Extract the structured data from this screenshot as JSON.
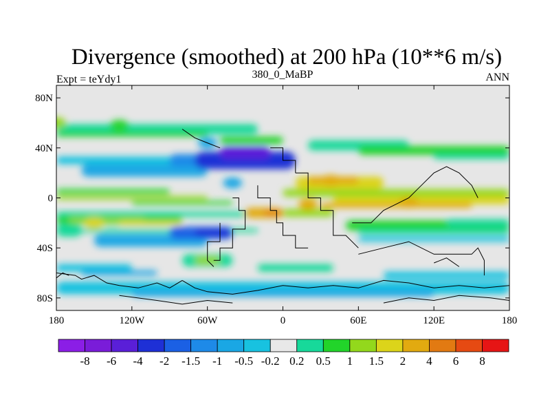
{
  "chart_data": {
    "type": "heatmap",
    "title": "Divergence (smoothed) at 200 hPa (10**6 m/s)",
    "left_label": "Expt = teYdy1",
    "center_label": "380_0_MaBP",
    "right_label": "ANN",
    "x_axis": {
      "range": [
        -180,
        180
      ],
      "ticks": [
        {
          "value": -180,
          "label": "180"
        },
        {
          "value": -120,
          "label": "120W"
        },
        {
          "value": -60,
          "label": "60W"
        },
        {
          "value": 0,
          "label": "0"
        },
        {
          "value": 60,
          "label": "60E"
        },
        {
          "value": 120,
          "label": "120E"
        },
        {
          "value": 180,
          "label": "180"
        }
      ]
    },
    "y_axis": {
      "range": [
        -90,
        90
      ],
      "ticks": [
        {
          "value": 80,
          "label": "80N"
        },
        {
          "value": 40,
          "label": "40N"
        },
        {
          "value": 0,
          "label": "0"
        },
        {
          "value": -40,
          "label": "40S"
        },
        {
          "value": -80,
          "label": "80S"
        }
      ]
    },
    "colorbar": {
      "colors": [
        "#8b1ee6",
        "#7a1cd9",
        "#5a1fd8",
        "#1e30d6",
        "#1b60e4",
        "#1e8ae8",
        "#1aa7e4",
        "#18c2e0",
        "#e8e8e8",
        "#17d99a",
        "#22d42a",
        "#93d81c",
        "#dcd41a",
        "#e2aa10",
        "#e27a12",
        "#e64a12",
        "#e61515"
      ],
      "labels": [
        "-8",
        "-6",
        "-4",
        "-2",
        "-1.5",
        "-1",
        "-0.5",
        "-0.2",
        "0.2",
        "0.5",
        "1",
        "1.5",
        "2",
        "4",
        "6",
        "8"
      ]
    },
    "field_features": [
      {
        "lon": -40,
        "lat": 12,
        "value": -0.6
      },
      {
        "lon": -60,
        "lat": 44,
        "value": -0.6
      },
      {
        "lon": 38,
        "lat": 14,
        "value": 3.0
      },
      {
        "lon": 20,
        "lat": -5,
        "value": 2.0
      },
      {
        "lon": 100,
        "lat": -4,
        "value": 2.0
      },
      {
        "lon": -180,
        "lat": 60,
        "value": 1.0
      },
      {
        "lon": -130,
        "lat": 58,
        "value": 0.6
      },
      {
        "lon": -150,
        "lat": -20,
        "value": 1.5
      }
    ]
  }
}
